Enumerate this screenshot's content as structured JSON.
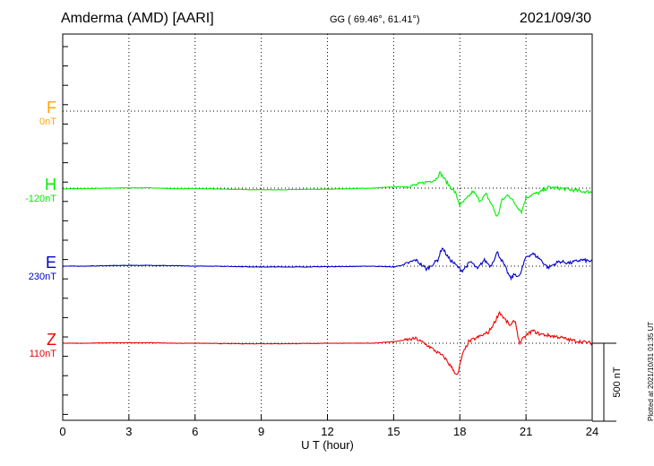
{
  "header": {
    "station": "Amderma (AMD)  [AARI]",
    "coords": "GG ( 69.46°,  61.41°)",
    "date": "2021/09/30"
  },
  "xaxis": {
    "label": "U T (hour)",
    "ticks": [
      "0",
      "3",
      "6",
      "9",
      "12",
      "15",
      "18",
      "21",
      "24"
    ]
  },
  "scale_bar": {
    "label": "500 nT",
    "value_nT": 500
  },
  "plotted_note": "Plotted at 2021/10/31 01:35 UT",
  "colors": {
    "F": "#ffa500",
    "H": "#00ee00",
    "E": "#0000cc",
    "Z": "#ee0000"
  },
  "chart_data": {
    "type": "line",
    "xlabel": "U T (hour)",
    "xlim": [
      0,
      24
    ],
    "components": [
      {
        "label": "F",
        "offset": "0nT",
        "values": []
      },
      {
        "label": "H",
        "offset": "-120nT",
        "x": [
          0,
          1,
          2,
          3,
          4,
          5,
          6,
          7,
          8,
          9,
          10,
          11,
          12,
          13,
          14,
          15,
          15.5,
          16,
          16.5,
          16.9,
          17.1,
          17.3,
          17.5,
          17.8,
          18,
          18.3,
          18.6,
          18.9,
          19.2,
          19.5,
          19.7,
          19.9,
          20.2,
          20.5,
          20.8,
          21,
          21.3,
          21.6,
          22,
          22.5,
          23,
          23.5,
          24
        ],
        "values": [
          -5,
          -3,
          0,
          2,
          2,
          -3,
          -3,
          -5,
          -8,
          -10,
          -10,
          -8,
          -7,
          -3,
          0,
          8,
          10,
          20,
          40,
          55,
          100,
          60,
          20,
          -30,
          -110,
          -70,
          -20,
          -80,
          -40,
          -120,
          -190,
          -80,
          -40,
          -100,
          -150,
          -60,
          -40,
          -30,
          5,
          0,
          -10,
          -20,
          -25
        ]
      },
      {
        "label": "E",
        "offset": "230nT",
        "x": [
          0,
          1,
          2,
          3,
          4,
          5,
          6,
          7,
          8,
          9,
          10,
          11,
          12,
          13,
          14,
          15,
          15.5,
          16,
          16.5,
          17,
          17.2,
          17.5,
          17.8,
          18.1,
          18.5,
          18.8,
          19.1,
          19.4,
          19.7,
          20,
          20.3,
          20.5,
          20.7,
          21,
          21.3,
          21.6,
          22,
          22.5,
          23,
          23.5,
          24
        ],
        "values": [
          0,
          0,
          3,
          5,
          5,
          3,
          0,
          0,
          -3,
          -5,
          -5,
          -5,
          -3,
          -2,
          0,
          -5,
          10,
          40,
          -20,
          40,
          120,
          50,
          10,
          -30,
          30,
          -20,
          40,
          0,
          90,
          10,
          -80,
          -50,
          -70,
          60,
          80,
          50,
          -10,
          30,
          20,
          40,
          30
        ]
      },
      {
        "label": "Z",
        "offset": "110nT",
        "x": [
          0,
          1,
          2,
          3,
          4,
          5,
          6,
          7,
          8,
          9,
          10,
          11,
          12,
          13,
          14,
          15,
          15.5,
          16,
          16.5,
          17,
          17.3,
          17.6,
          17.9,
          18.1,
          18.4,
          18.7,
          19,
          19.3,
          19.6,
          19.8,
          20,
          20.3,
          20.5,
          20.7,
          21,
          21.3,
          21.6,
          22,
          22.5,
          23,
          23.5,
          24
        ],
        "values": [
          0,
          0,
          2,
          3,
          3,
          0,
          0,
          -2,
          -3,
          -3,
          -3,
          -2,
          0,
          0,
          0,
          10,
          20,
          30,
          -10,
          -60,
          -90,
          -150,
          -210,
          -80,
          10,
          30,
          50,
          70,
          140,
          200,
          160,
          110,
          150,
          0,
          50,
          80,
          60,
          50,
          40,
          20,
          10,
          0
        ]
      }
    ]
  }
}
